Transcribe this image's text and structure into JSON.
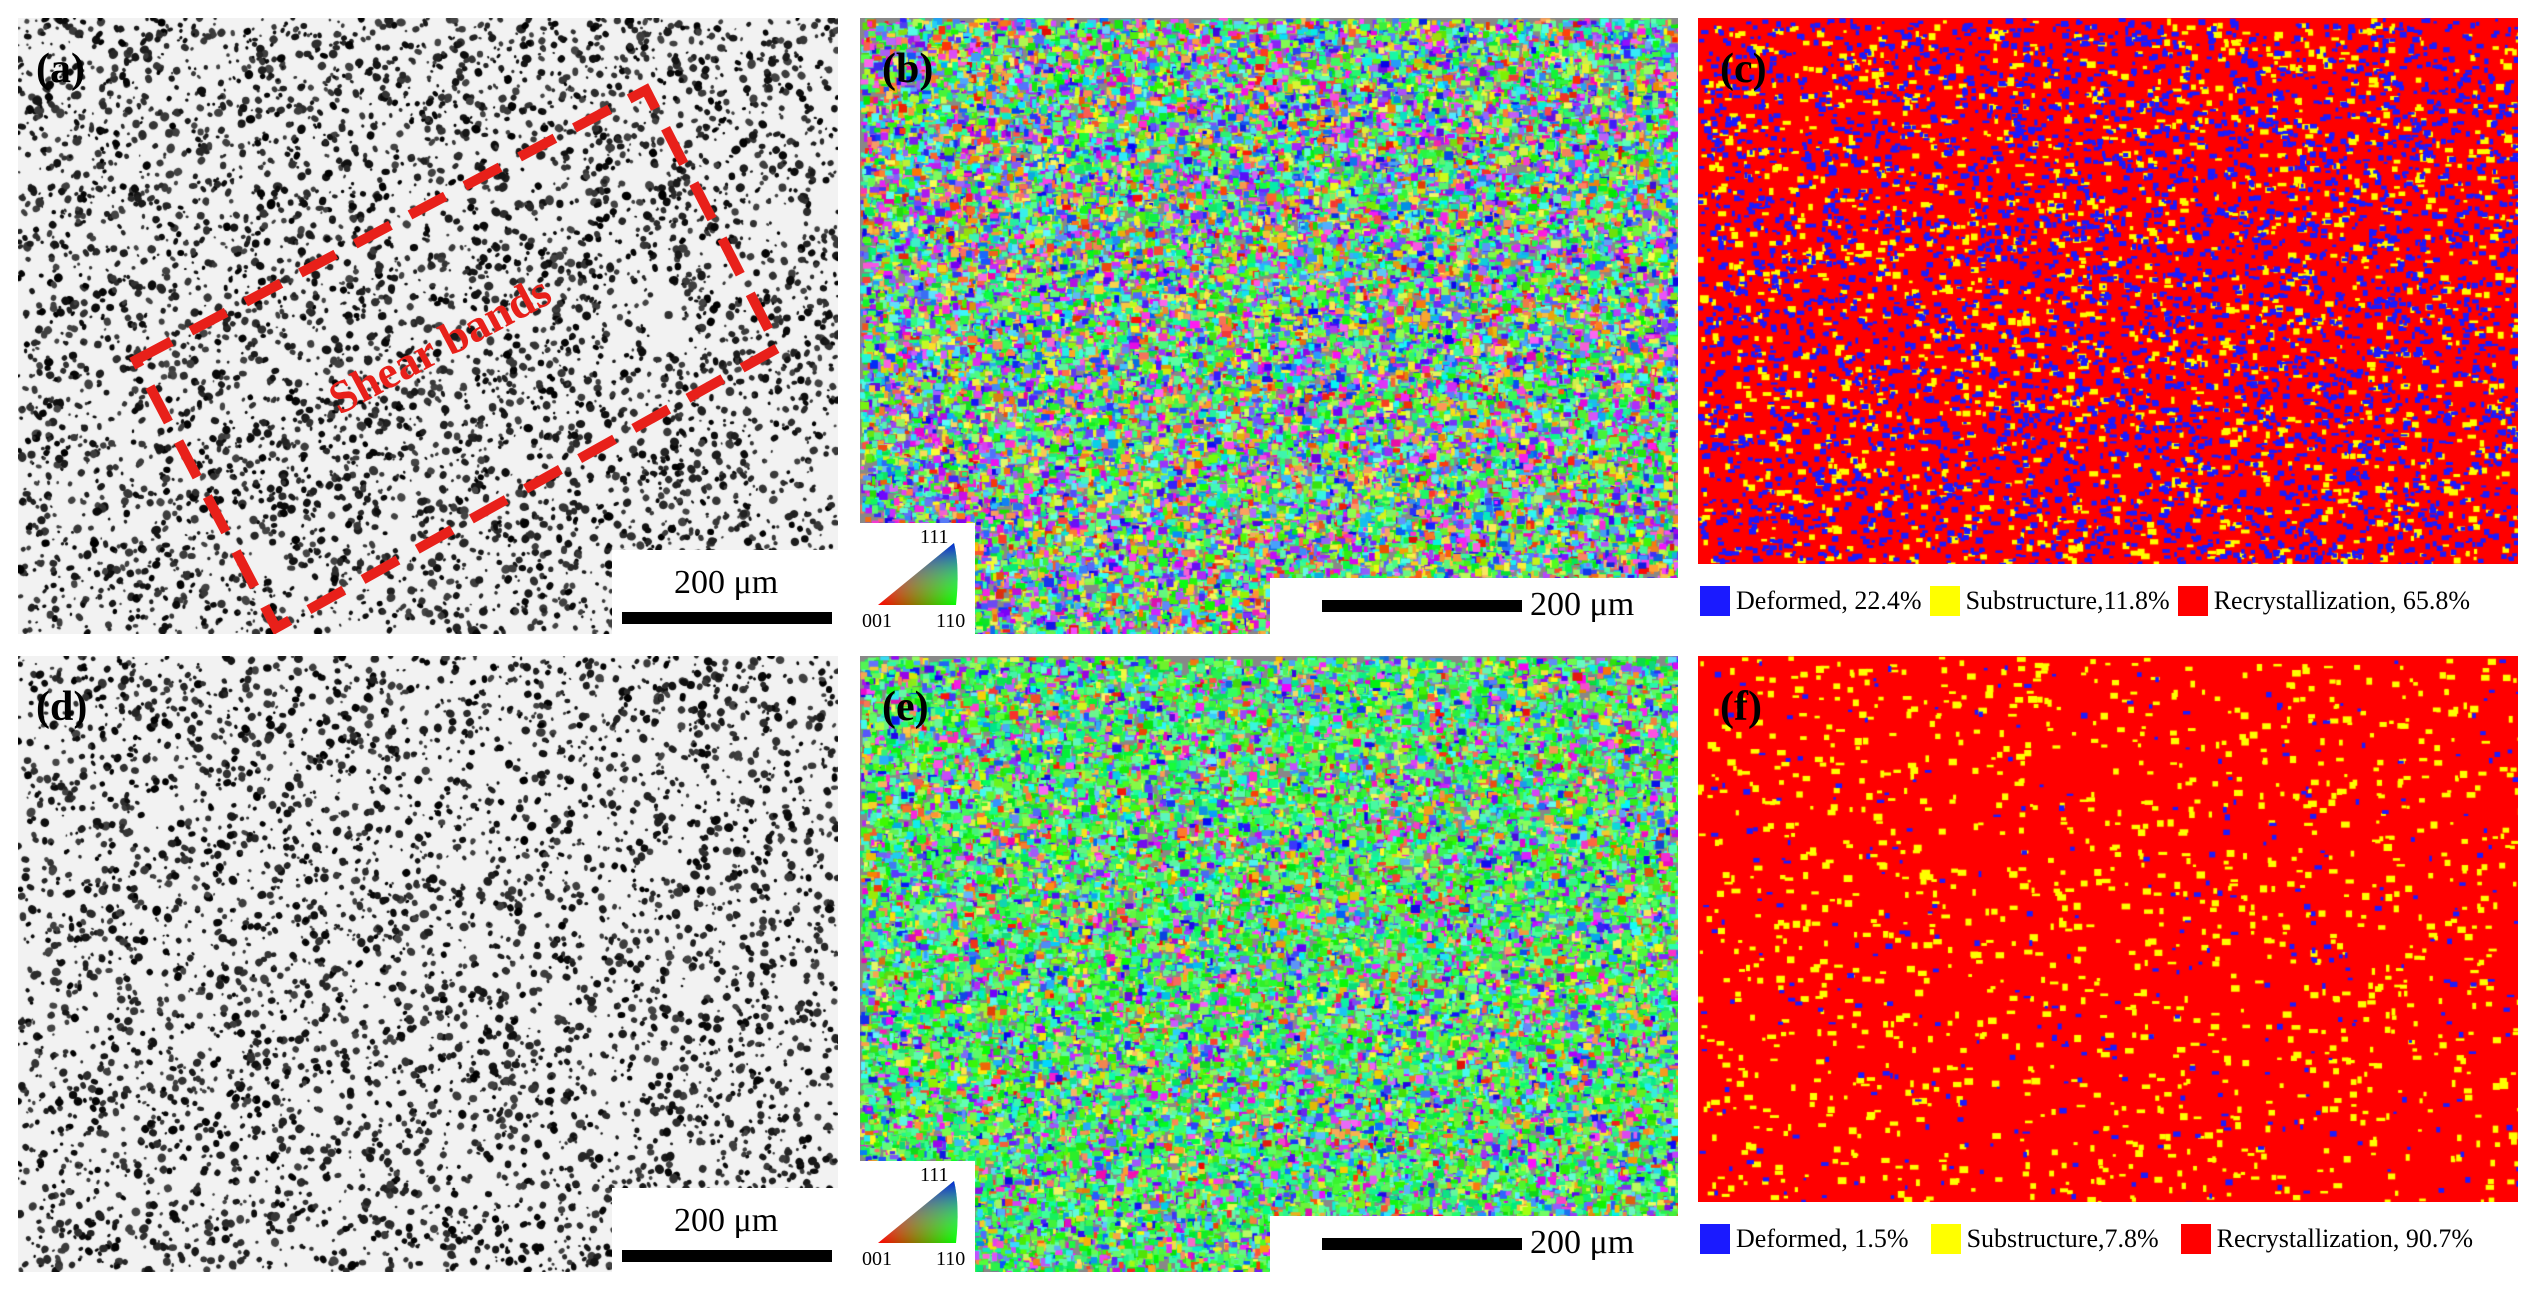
{
  "panels": {
    "a": {
      "label": "(a)",
      "scale": "200 μm",
      "annotation": "Shear bands"
    },
    "b": {
      "label": "(b)",
      "scale": "200 μm"
    },
    "c": {
      "label": "(c)"
    },
    "d": {
      "label": "(d)",
      "scale": "200 μm"
    },
    "e": {
      "label": "(e)",
      "scale": "200 μm"
    },
    "f": {
      "label": "(f)"
    }
  },
  "ipf_key": {
    "top": "111",
    "left": "001",
    "right": "110"
  },
  "legend_top": [
    {
      "text": "Deformed, 22.4%",
      "color": "#1a1aff",
      "fraction": 0.224
    },
    {
      "text": "Substructure,11.8%",
      "color": "#ffff00",
      "fraction": 0.118
    },
    {
      "text": "Recrystallization, 65.8%",
      "color": "#ff0000",
      "fraction": 0.658
    }
  ],
  "legend_bottom": [
    {
      "text": "Deformed, 1.5%",
      "color": "#1a1aff",
      "fraction": 0.015
    },
    {
      "text": "Substructure,7.8%",
      "color": "#ffff00",
      "fraction": 0.078
    },
    {
      "text": "Recrystallization, 90.7%",
      "color": "#ff0000",
      "fraction": 0.907
    }
  ],
  "colors": {
    "annotation": "#e8201a",
    "scale_bar": "#000000"
  }
}
